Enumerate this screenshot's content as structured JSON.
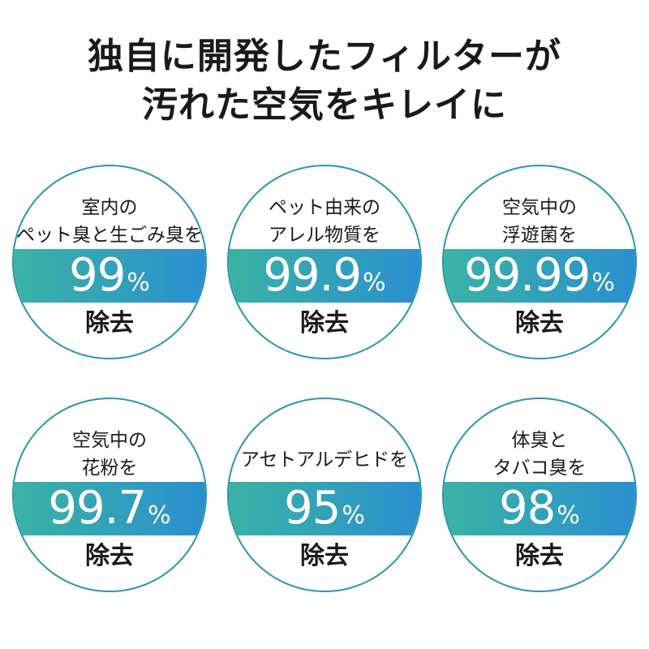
{
  "headline": {
    "line1": "独自に開発したフィルターが",
    "line2": "汚れた空気をキレイに"
  },
  "colors": {
    "band_start": "#3ab3a4",
    "band_end": "#2a8fd0",
    "ring": "#2a96ad"
  },
  "badges": [
    {
      "desc_line1": "室内の",
      "desc_line2": "ペット臭と生ごみ臭を",
      "value": "99",
      "unit": "%",
      "removal": "除去"
    },
    {
      "desc_line1": "ペット由来の",
      "desc_line2": "アレル物質を",
      "value": "99.9",
      "unit": "%",
      "removal": "除去"
    },
    {
      "desc_line1": "空気中の",
      "desc_line2": "浮遊菌を",
      "value": "99.99",
      "unit": "%",
      "removal": "除去"
    },
    {
      "desc_line1": "空気中の",
      "desc_line2": "花粉を",
      "value": "99.7",
      "unit": "%",
      "removal": "除去"
    },
    {
      "desc_line1": "アセトアルデヒドを",
      "value": "95",
      "unit": "%",
      "removal": "除去"
    },
    {
      "desc_line1": "体臭と",
      "desc_line2": "タバコ臭を",
      "value": "98",
      "unit": "%",
      "removal": "除去"
    }
  ]
}
